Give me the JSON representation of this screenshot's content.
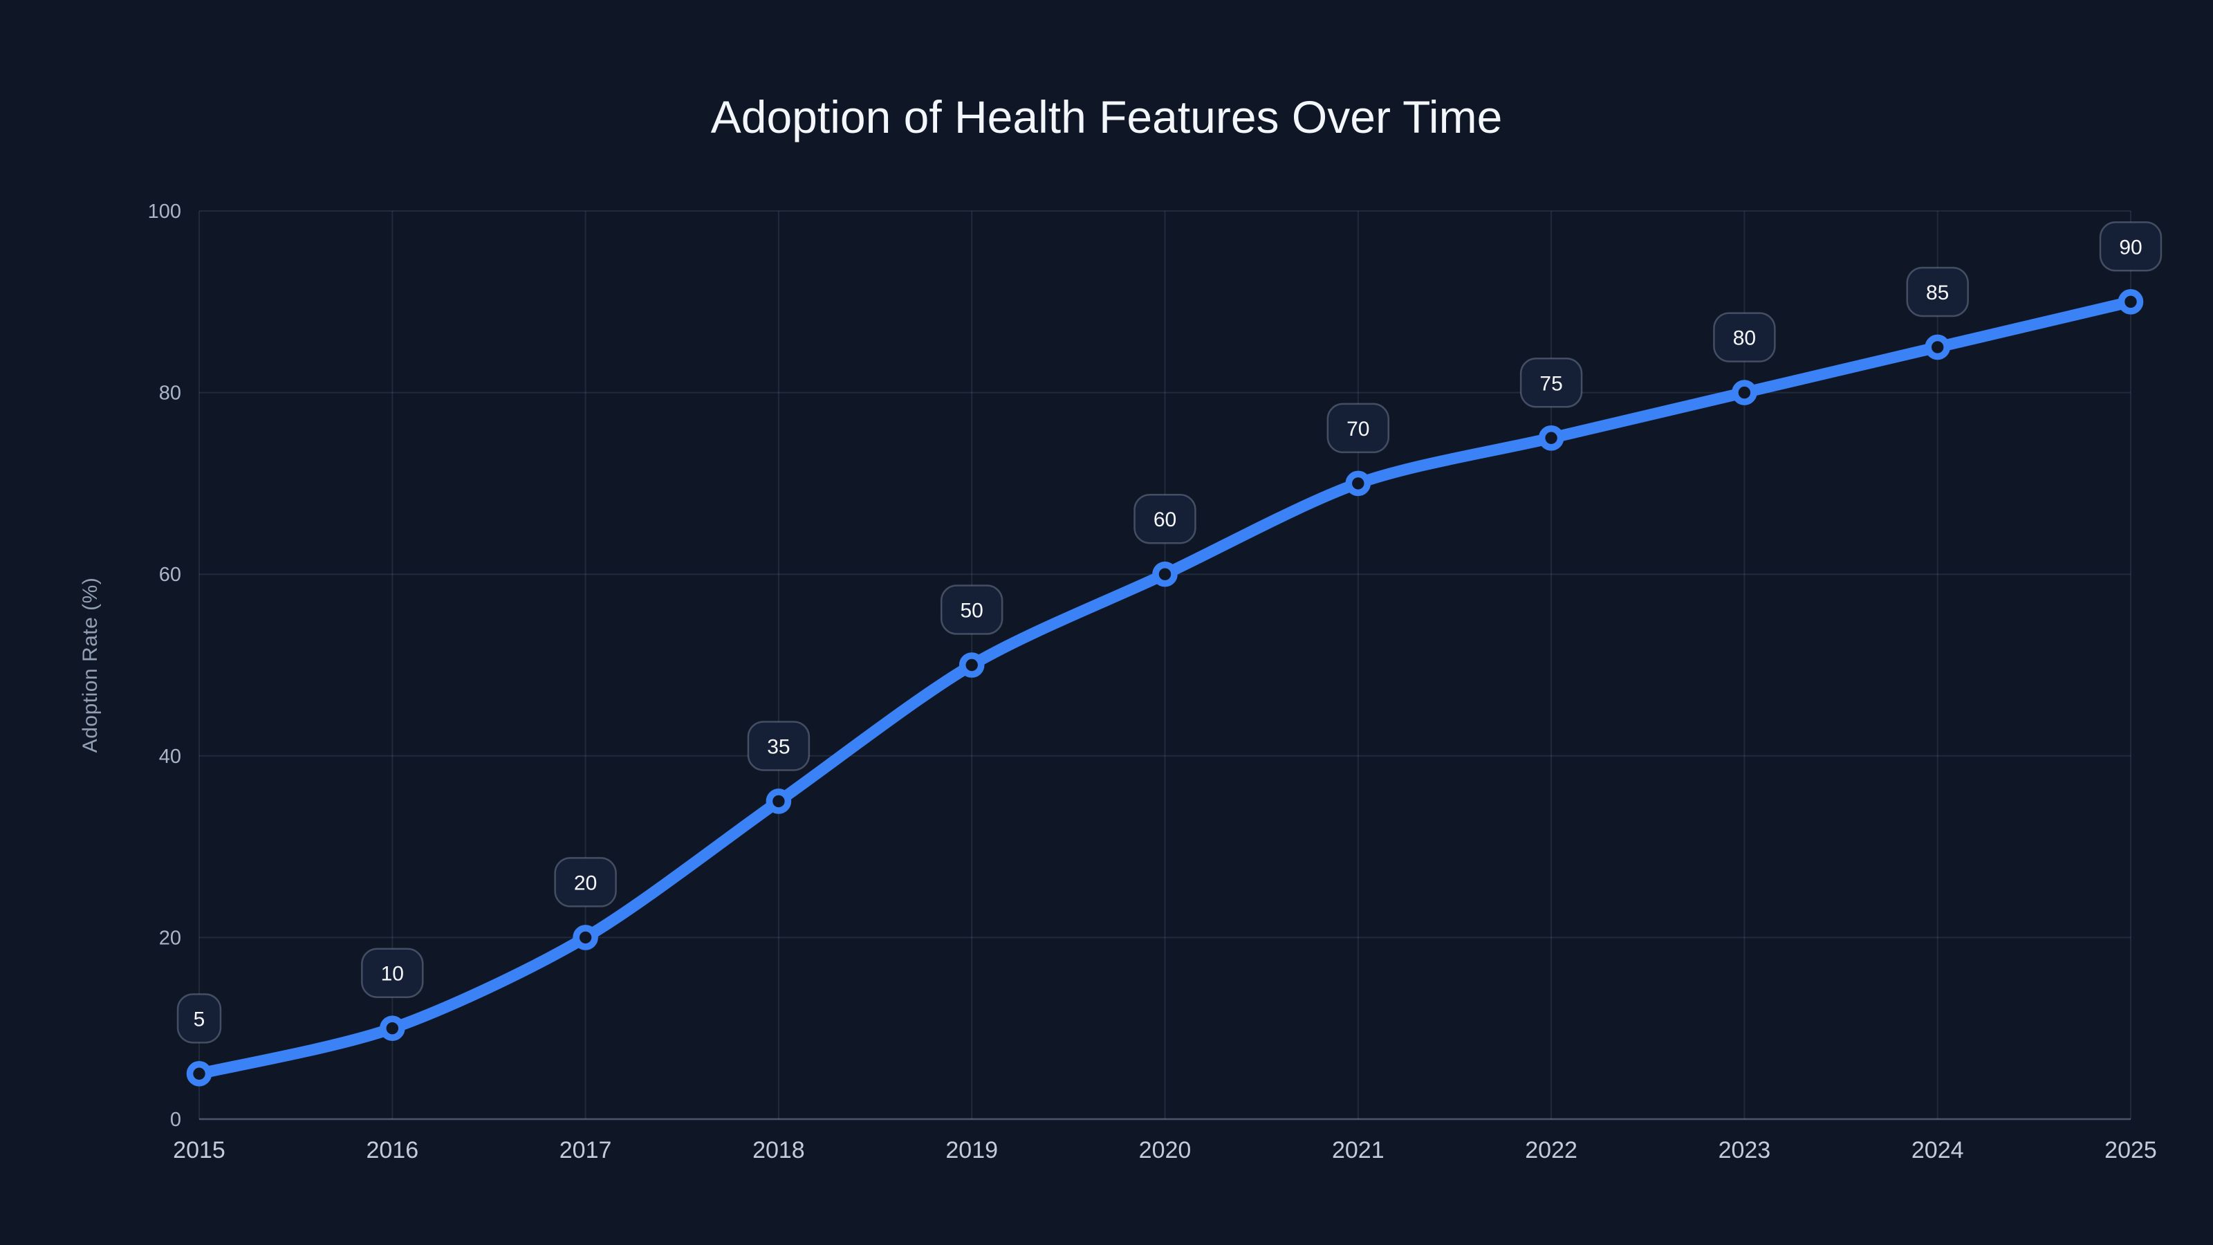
{
  "page": {
    "background_color": "#0f1727"
  },
  "chart_data": {
    "type": "line",
    "title": "Adoption of Health Features Over Time",
    "xlabel": "",
    "ylabel": "Adoption Rate (%)",
    "x": [
      2015,
      2016,
      2017,
      2018,
      2019,
      2020,
      2021,
      2022,
      2023,
      2024,
      2025
    ],
    "series": [
      {
        "name": "Adoption Rate (%)",
        "values": [
          5,
          10,
          20,
          35,
          50,
          60,
          70,
          75,
          80,
          85,
          90
        ]
      }
    ],
    "ylim": [
      0,
      100
    ],
    "yticks": [
      0,
      20,
      40,
      60,
      80,
      100
    ],
    "grid": true,
    "legend": false,
    "colors": {
      "line": "#3b82f6",
      "marker_stroke": "#3b82f6",
      "marker_fill": "#0f1727",
      "grid": "rgba(148,163,184,0.14)",
      "axis_line": "rgba(148,163,184,0.45)",
      "title_text": "#f3f6fb",
      "tick_text": "#c3ccda",
      "y_tick_text": "#aab6c8",
      "axis_title_text": "#93a0b4",
      "label_box_fill": "#151f36",
      "label_box_border": "rgba(148,163,184,0.38)",
      "label_text": "#f5f7fa"
    }
  }
}
